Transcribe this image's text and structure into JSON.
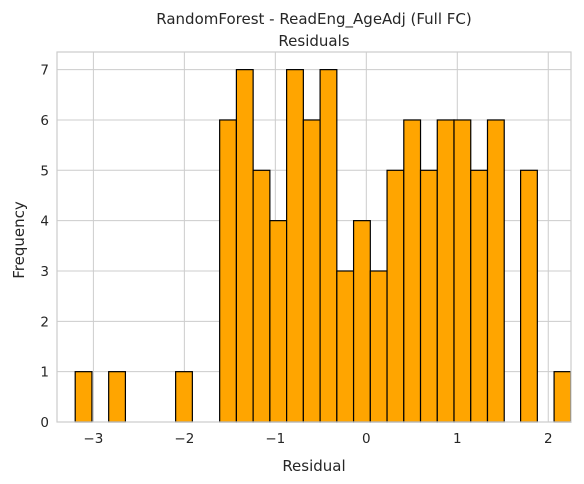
{
  "chart_data": {
    "type": "bar",
    "title": "RandomForest - ReadEng_AgeAdj (Full FC)",
    "subtitle": "Residuals",
    "xlabel": "Residual",
    "ylabel": "Frequency",
    "xlim": [
      -3.4,
      2.25
    ],
    "ylim": [
      0,
      7.35
    ],
    "xticks": [
      -3,
      -2,
      -1,
      0,
      1,
      2
    ],
    "xtick_labels": [
      "−3",
      "−2",
      "−1",
      "0",
      "1",
      "2"
    ],
    "yticks": [
      0,
      1,
      2,
      3,
      4,
      5,
      6,
      7
    ],
    "ytick_labels": [
      "0",
      "1",
      "2",
      "3",
      "4",
      "5",
      "6",
      "7"
    ],
    "grid": true,
    "bar_color": "#FFA500",
    "edge_color": "#000000",
    "bin_width": 0.184,
    "bins": [
      {
        "x0": -3.2,
        "count": 1
      },
      {
        "x0": -2.832,
        "count": 1
      },
      {
        "x0": -2.096,
        "count": 1
      },
      {
        "x0": -1.612,
        "count": 6
      },
      {
        "x0": -1.428,
        "count": 7
      },
      {
        "x0": -1.244,
        "count": 5
      },
      {
        "x0": -1.06,
        "count": 4
      },
      {
        "x0": -0.876,
        "count": 7
      },
      {
        "x0": -0.692,
        "count": 6
      },
      {
        "x0": -0.508,
        "count": 7
      },
      {
        "x0": -0.324,
        "count": 3
      },
      {
        "x0": -0.14,
        "count": 4
      },
      {
        "x0": 0.044,
        "count": 3
      },
      {
        "x0": 0.228,
        "count": 5
      },
      {
        "x0": 0.412,
        "count": 6
      },
      {
        "x0": 0.596,
        "count": 5
      },
      {
        "x0": 0.78,
        "count": 6
      },
      {
        "x0": 0.964,
        "count": 6
      },
      {
        "x0": 1.148,
        "count": 5
      },
      {
        "x0": 1.332,
        "count": 6
      },
      {
        "x0": 1.696,
        "count": 5
      },
      {
        "x0": 2.064,
        "count": 1
      }
    ]
  }
}
